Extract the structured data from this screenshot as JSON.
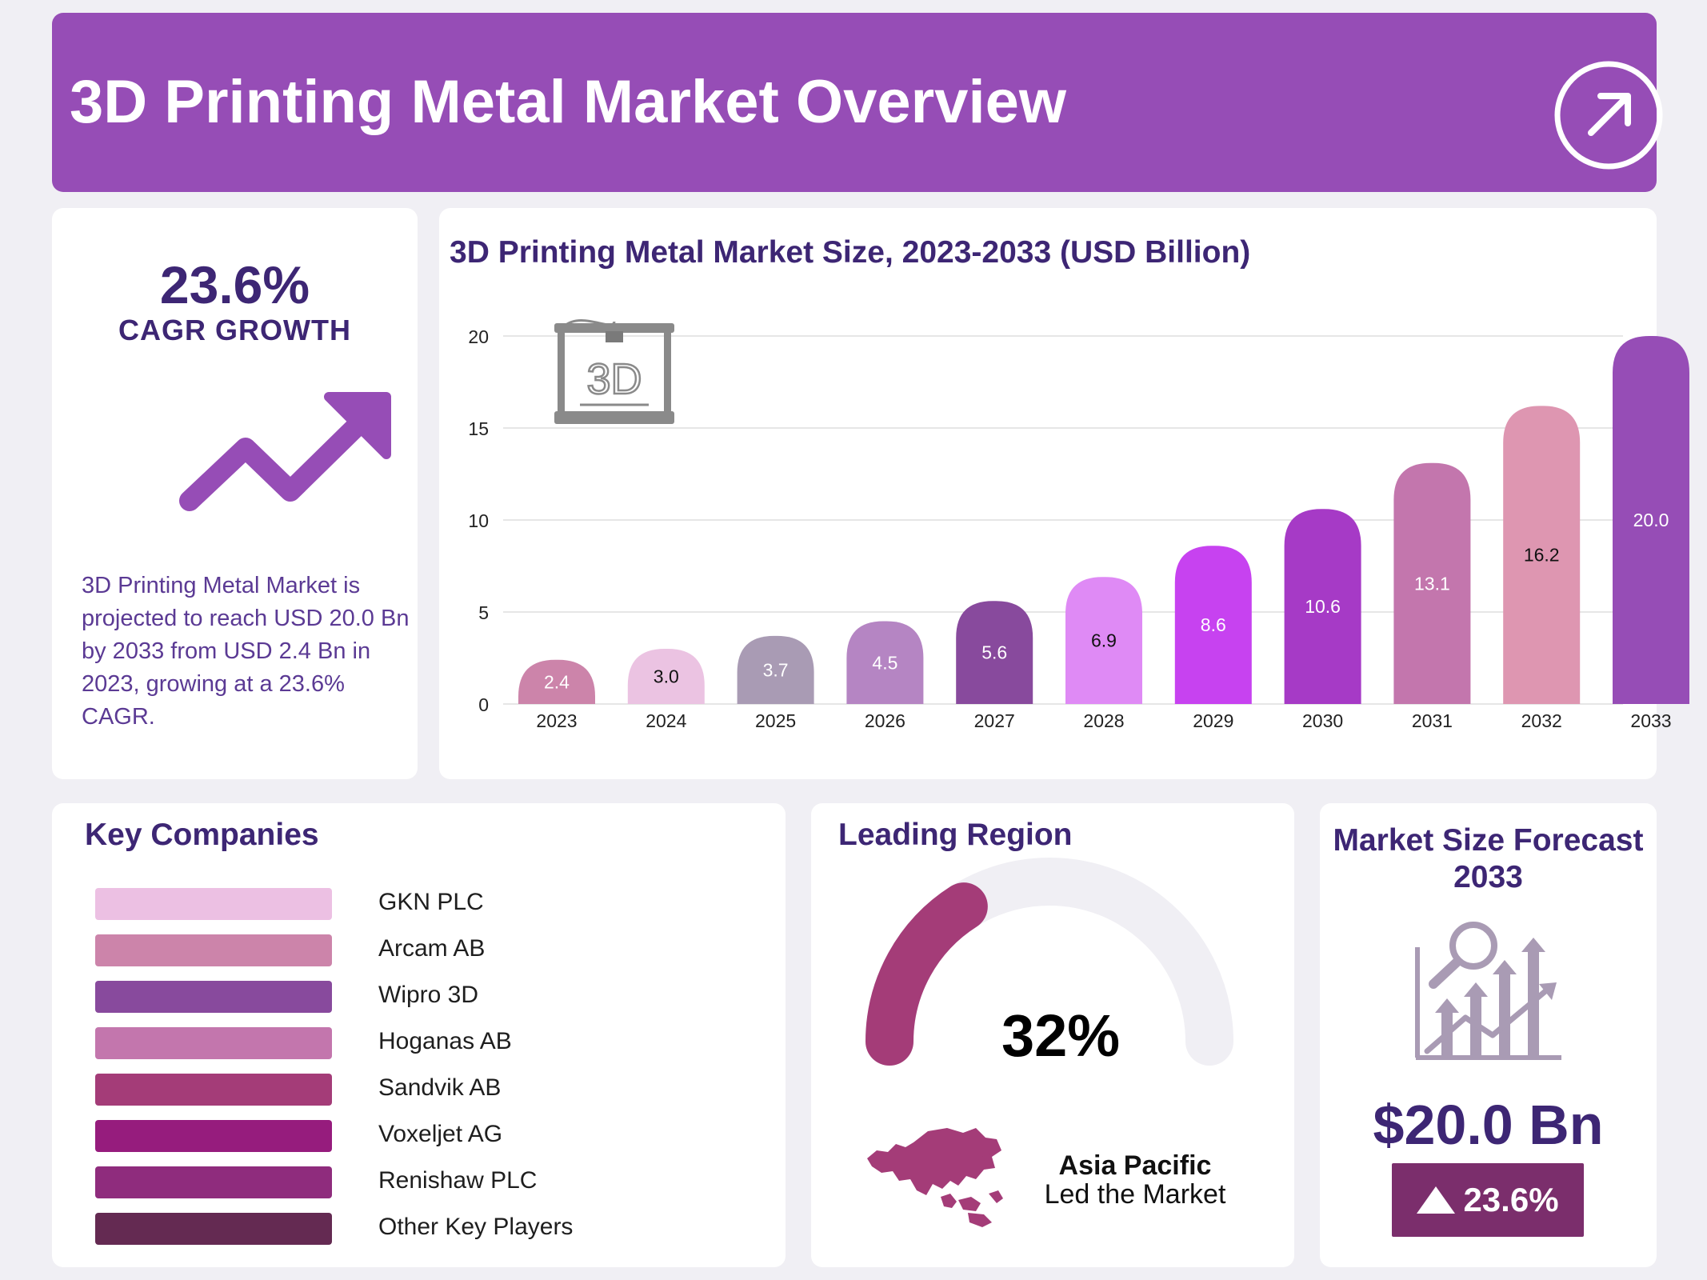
{
  "header": {
    "title": "3D Printing Metal Market Overview"
  },
  "cagr": {
    "value": "23.6%",
    "label": "CAGR GROWTH",
    "description": "3D Printing Metal Market is projected to reach USD 20.0 Bn by 2033 from USD 2.4 Bn in 2023, growing at a 23.6% CAGR."
  },
  "chart_data": {
    "type": "bar",
    "title": "3D Printing Metal Market Size, 2023-2033 (USD Billion)",
    "categories": [
      "2023",
      "2024",
      "2025",
      "2026",
      "2027",
      "2028",
      "2029",
      "2030",
      "2031",
      "2032",
      "2033"
    ],
    "values": [
      2.4,
      3.0,
      3.7,
      4.5,
      5.6,
      6.9,
      8.6,
      10.6,
      13.1,
      16.2,
      20.0
    ],
    "value_labels": [
      "2.4",
      "3.0",
      "3.7",
      "4.5",
      "5.6",
      "6.9",
      "8.6",
      "10.6",
      "13.1",
      "16.2",
      "20.0"
    ],
    "bar_colors": [
      "#cc84aa",
      "#ebc3e2",
      "#a99bb4",
      "#b585c3",
      "#884a9d",
      "#df8af5",
      "#c742f0",
      "#a63ac6",
      "#c376ad",
      "#de96b1",
      "#964db6"
    ],
    "label_colors": [
      "#ffffff",
      "#111111",
      "#ffffff",
      "#ffffff",
      "#ffffff",
      "#111111",
      "#ffffff",
      "#ffffff",
      "#ffffff",
      "#111111",
      "#ffffff"
    ],
    "ylim": [
      0,
      20
    ],
    "yticks": [
      0,
      5,
      10,
      15,
      20
    ],
    "grid": true,
    "xlabel": "",
    "ylabel": ""
  },
  "companies": {
    "title": "Key Companies",
    "items": [
      {
        "name": "GKN PLC",
        "color": "#ecc0e3"
      },
      {
        "name": "Arcam AB",
        "color": "#cc84aa"
      },
      {
        "name": "Wipro 3D",
        "color": "#884a9d"
      },
      {
        "name": "Hoganas AB",
        "color": "#c376ad"
      },
      {
        "name": "Sandvik AB",
        "color": "#a43c78"
      },
      {
        "name": "Voxeljet AG",
        "color": "#961c7d"
      },
      {
        "name": "Renishaw PLC",
        "color": "#8f2c7d"
      },
      {
        "name": "Other Key Players",
        "color": "#642a52"
      }
    ]
  },
  "region": {
    "title": "Leading Region",
    "share": 32,
    "share_label": "32%",
    "name": "Asia Pacific",
    "caption": "Led the Market",
    "gauge_color": "#a43c78",
    "track_color": "#f0eff4"
  },
  "forecast": {
    "title": "Market Size Forecast 2033",
    "value": "$20.0 Bn",
    "growth": "23.6%"
  },
  "colors": {
    "header_bg": "#964db6",
    "heading_text": "#3d2674",
    "page_bg": "#f0eff4"
  }
}
